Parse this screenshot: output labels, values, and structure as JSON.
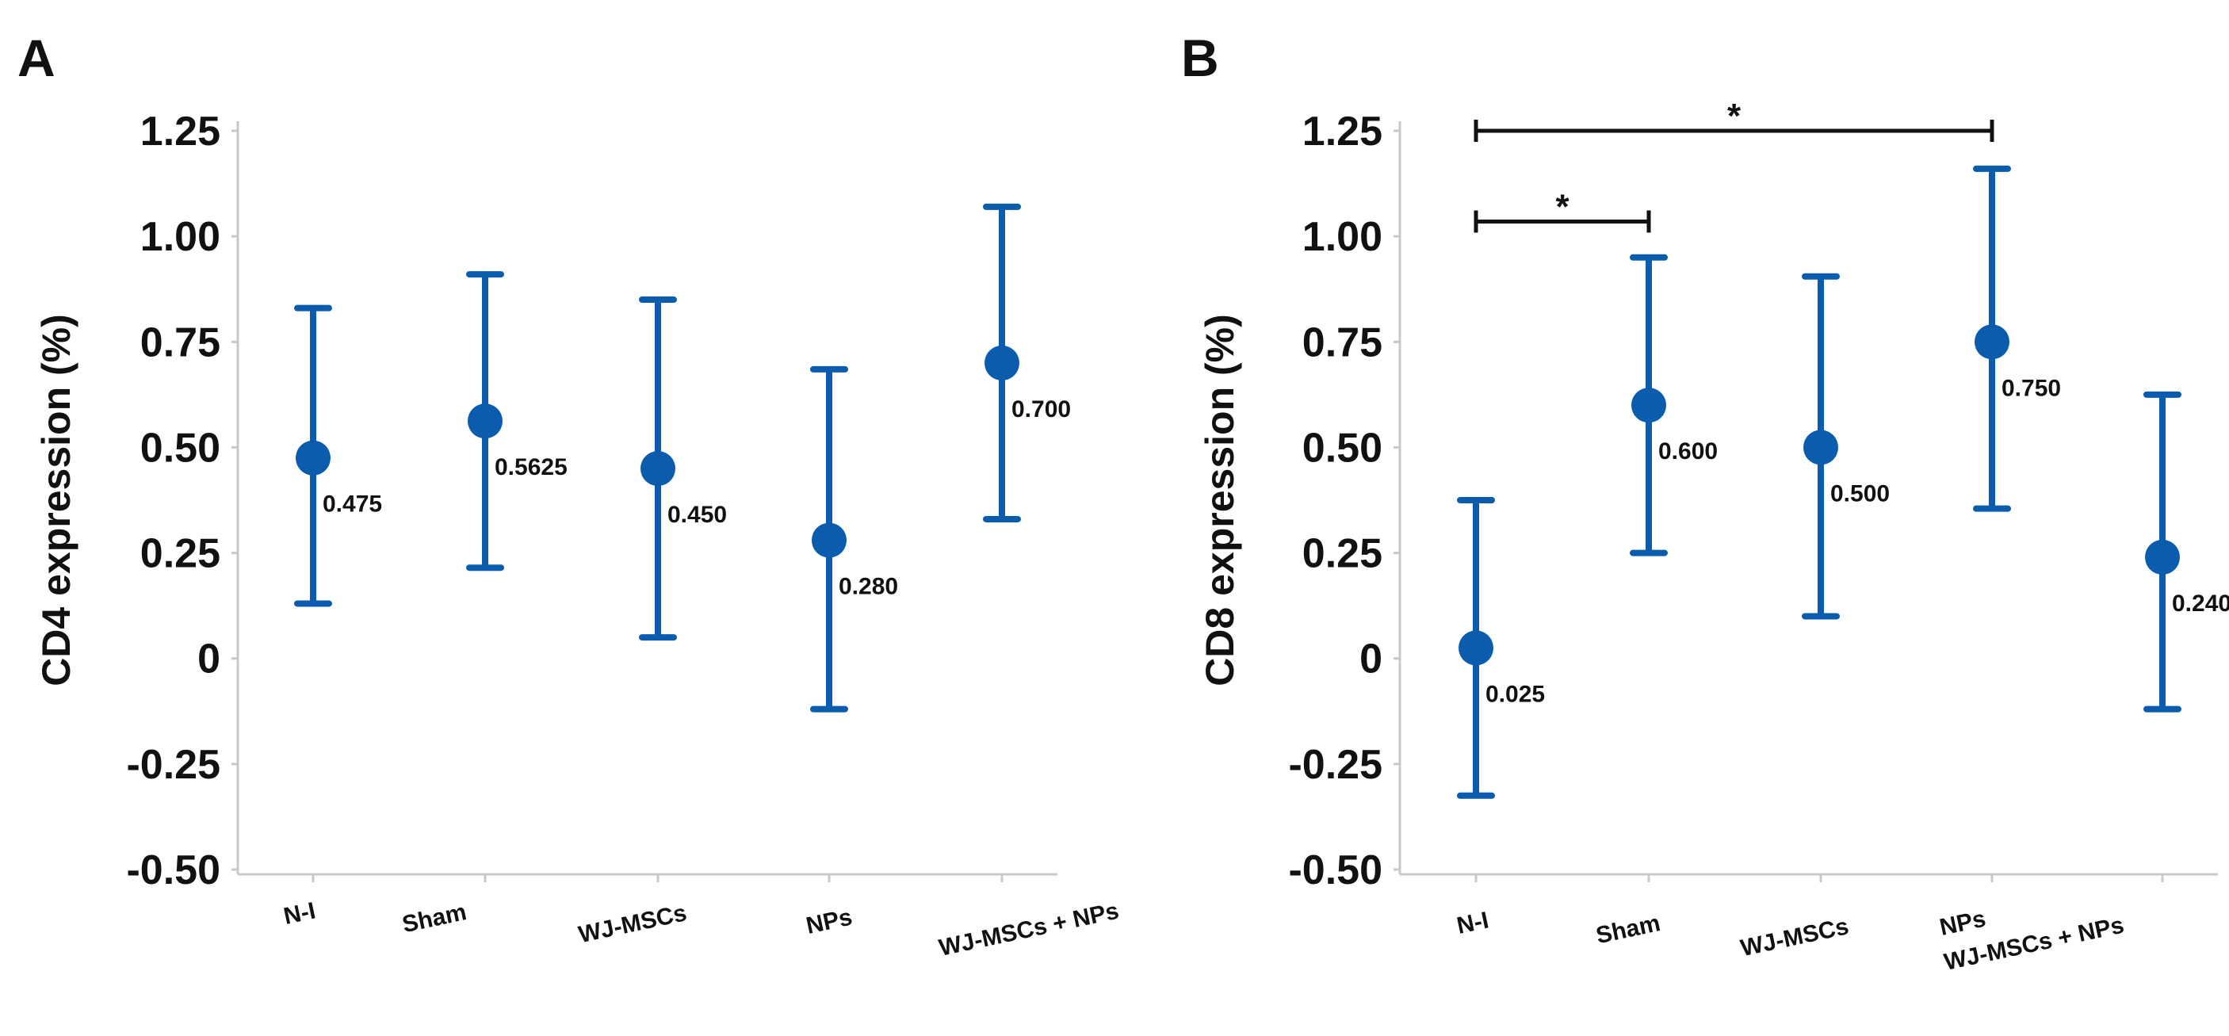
{
  "figure": {
    "background": "#ffffff",
    "marker_color": "#0b5cad"
  },
  "chart_data": [
    {
      "panel": "A",
      "type": "scatter",
      "subtype": "mean-with-error-bars",
      "ylabel": "CD4 expression (%)",
      "ylim": [
        -0.5,
        1.25
      ],
      "yticks": [
        {
          "value": 1.25,
          "label": "1.25"
        },
        {
          "value": 1.0,
          "label": "1.00"
        },
        {
          "value": 0.75,
          "label": "0.75"
        },
        {
          "value": 0.5,
          "label": "0.50"
        },
        {
          "value": 0.25,
          "label": "0.25"
        },
        {
          "value": 0.0,
          "label": "0"
        },
        {
          "value": -0.25,
          "label": "-0.25"
        },
        {
          "value": -0.5,
          "label": "-0.50"
        }
      ],
      "categories": [
        "N-I",
        "Sham",
        "WJ-MSCs",
        "NPs",
        "WJ-MSCs + NPs"
      ],
      "values": [
        0.475,
        0.5625,
        0.45,
        0.28,
        0.7
      ],
      "value_labels": [
        "0.475",
        "0.5625",
        "0.450",
        "0.280",
        "0.700"
      ],
      "lower": [
        0.13,
        0.215,
        0.05,
        -0.12,
        0.33
      ],
      "upper": [
        0.83,
        0.91,
        0.85,
        0.685,
        1.07
      ],
      "significance": []
    },
    {
      "panel": "B",
      "type": "scatter",
      "subtype": "mean-with-error-bars",
      "ylabel": "CD8 expression (%)",
      "ylim": [
        -0.5,
        1.25
      ],
      "yticks": [
        {
          "value": 1.25,
          "label": "1.25"
        },
        {
          "value": 1.0,
          "label": "1.00"
        },
        {
          "value": 0.75,
          "label": "0.75"
        },
        {
          "value": 0.5,
          "label": "0.50"
        },
        {
          "value": 0.25,
          "label": "0.25"
        },
        {
          "value": 0.0,
          "label": "0"
        },
        {
          "value": -0.25,
          "label": "-0.25"
        },
        {
          "value": -0.5,
          "label": "-0.50"
        }
      ],
      "categories": [
        "N-I",
        "Sham",
        "WJ-MSCs",
        "NPs",
        "WJ-MSCs + NPs"
      ],
      "values": [
        0.025,
        0.6,
        0.5,
        0.75,
        0.24
      ],
      "value_labels": [
        "0.025",
        "0.600",
        "0.500",
        "0.750",
        "0.240"
      ],
      "lower": [
        -0.325,
        0.25,
        0.1,
        0.355,
        -0.12
      ],
      "upper": [
        0.375,
        0.95,
        0.905,
        1.16,
        0.625
      ],
      "significance": [
        {
          "from": 0,
          "to": 1,
          "y": 1.035,
          "label": "*"
        },
        {
          "from": 0,
          "to": 3,
          "y": 1.25,
          "label": "*"
        }
      ]
    }
  ]
}
